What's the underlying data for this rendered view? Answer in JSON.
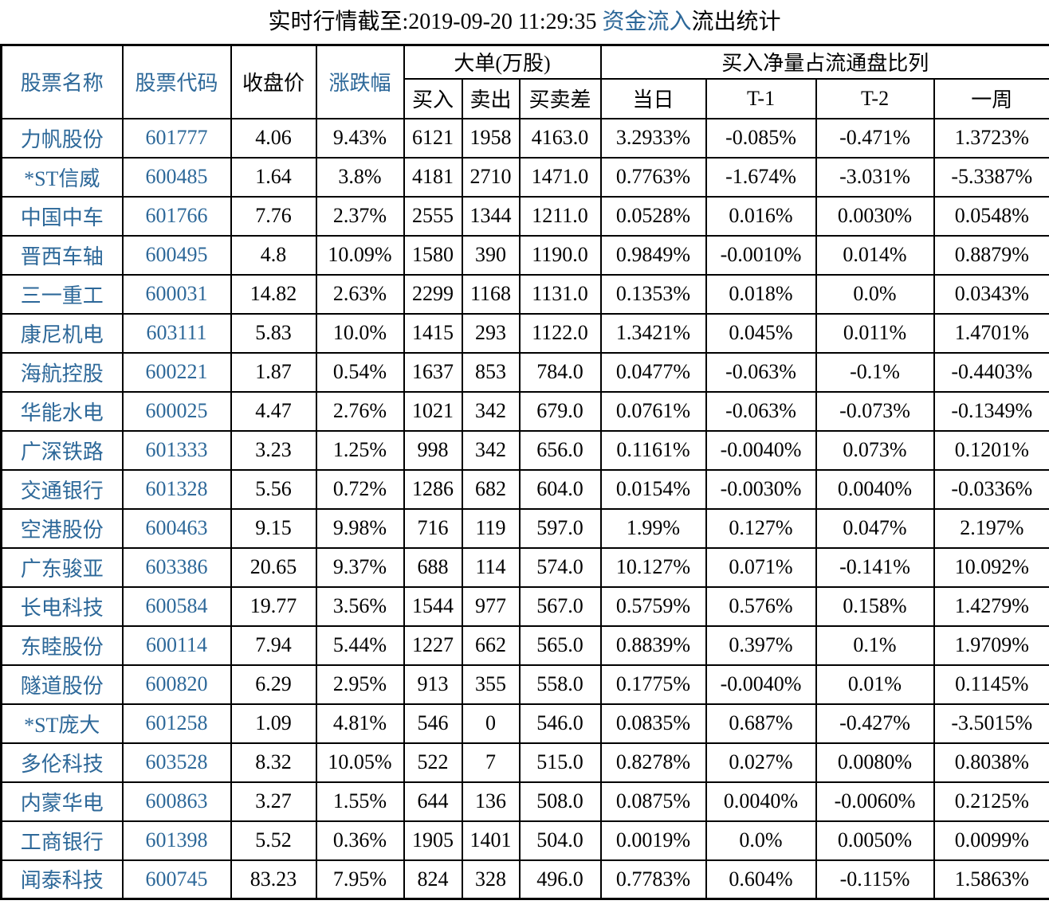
{
  "title": {
    "prefix": "实时行情截至:2019-09-20 11:29:35 ",
    "highlight": "资金流入",
    "suffix": "流出统计"
  },
  "colors": {
    "accent_blue": "#2d6899",
    "text_black": "#000000",
    "border": "#000000",
    "background": "#ffffff"
  },
  "table": {
    "headers": {
      "stock_name": "股票名称",
      "stock_code": "股票代码",
      "close_price": "收盘价",
      "change_pct": "涨跌幅",
      "big_order_group": "大单(万股)",
      "buy": "买入",
      "sell": "卖出",
      "buy_sell_diff": "买卖差",
      "net_buy_group": "买入净量占流通盘比列",
      "today": "当日",
      "t_minus_1": "T-1",
      "t_minus_2": "T-2",
      "one_week": "一周"
    },
    "rows": [
      [
        "力帆股份",
        "601777",
        "4.06",
        "9.43%",
        "6121",
        "1958",
        "4163.0",
        "3.2933%",
        "-0.085%",
        "-0.471%",
        "1.3723%"
      ],
      [
        "*ST信威",
        "600485",
        "1.64",
        "3.8%",
        "4181",
        "2710",
        "1471.0",
        "0.7763%",
        "-1.674%",
        "-3.031%",
        "-5.3387%"
      ],
      [
        "中国中车",
        "601766",
        "7.76",
        "2.37%",
        "2555",
        "1344",
        "1211.0",
        "0.0528%",
        "0.016%",
        "0.0030%",
        "0.0548%"
      ],
      [
        "晋西车轴",
        "600495",
        "4.8",
        "10.09%",
        "1580",
        "390",
        "1190.0",
        "0.9849%",
        "-0.0010%",
        "0.014%",
        "0.8879%"
      ],
      [
        "三一重工",
        "600031",
        "14.82",
        "2.63%",
        "2299",
        "1168",
        "1131.0",
        "0.1353%",
        "0.018%",
        "0.0%",
        "0.0343%"
      ],
      [
        "康尼机电",
        "603111",
        "5.83",
        "10.0%",
        "1415",
        "293",
        "1122.0",
        "1.3421%",
        "0.045%",
        "0.011%",
        "1.4701%"
      ],
      [
        "海航控股",
        "600221",
        "1.87",
        "0.54%",
        "1637",
        "853",
        "784.0",
        "0.0477%",
        "-0.063%",
        "-0.1%",
        "-0.4403%"
      ],
      [
        "华能水电",
        "600025",
        "4.47",
        "2.76%",
        "1021",
        "342",
        "679.0",
        "0.0761%",
        "-0.063%",
        "-0.073%",
        "-0.1349%"
      ],
      [
        "广深铁路",
        "601333",
        "3.23",
        "1.25%",
        "998",
        "342",
        "656.0",
        "0.1161%",
        "-0.0040%",
        "0.073%",
        "0.1201%"
      ],
      [
        "交通银行",
        "601328",
        "5.56",
        "0.72%",
        "1286",
        "682",
        "604.0",
        "0.0154%",
        "-0.0030%",
        "0.0040%",
        "-0.0336%"
      ],
      [
        "空港股份",
        "600463",
        "9.15",
        "9.98%",
        "716",
        "119",
        "597.0",
        "1.99%",
        "0.127%",
        "0.047%",
        "2.197%"
      ],
      [
        "广东骏亚",
        "603386",
        "20.65",
        "9.37%",
        "688",
        "114",
        "574.0",
        "10.127%",
        "0.071%",
        "-0.141%",
        "10.092%"
      ],
      [
        "长电科技",
        "600584",
        "19.77",
        "3.56%",
        "1544",
        "977",
        "567.0",
        "0.5759%",
        "0.576%",
        "0.158%",
        "1.4279%"
      ],
      [
        "东睦股份",
        "600114",
        "7.94",
        "5.44%",
        "1227",
        "662",
        "565.0",
        "0.8839%",
        "0.397%",
        "0.1%",
        "1.9709%"
      ],
      [
        "隧道股份",
        "600820",
        "6.29",
        "2.95%",
        "913",
        "355",
        "558.0",
        "0.1775%",
        "-0.0040%",
        "0.01%",
        "0.1145%"
      ],
      [
        "*ST庞大",
        "601258",
        "1.09",
        "4.81%",
        "546",
        "0",
        "546.0",
        "0.0835%",
        "0.687%",
        "-0.427%",
        "-3.5015%"
      ],
      [
        "多伦科技",
        "603528",
        "8.32",
        "10.05%",
        "522",
        "7",
        "515.0",
        "0.8278%",
        "0.027%",
        "0.0080%",
        "0.8038%"
      ],
      [
        "内蒙华电",
        "600863",
        "3.27",
        "1.55%",
        "644",
        "136",
        "508.0",
        "0.0875%",
        "0.0040%",
        "-0.0060%",
        "0.2125%"
      ],
      [
        "工商银行",
        "601398",
        "5.52",
        "0.36%",
        "1905",
        "1401",
        "504.0",
        "0.0019%",
        "0.0%",
        "0.0050%",
        "0.0099%"
      ],
      [
        "闻泰科技",
        "600745",
        "83.23",
        "7.95%",
        "824",
        "328",
        "496.0",
        "0.7783%",
        "0.604%",
        "-0.115%",
        "1.5863%"
      ]
    ]
  }
}
